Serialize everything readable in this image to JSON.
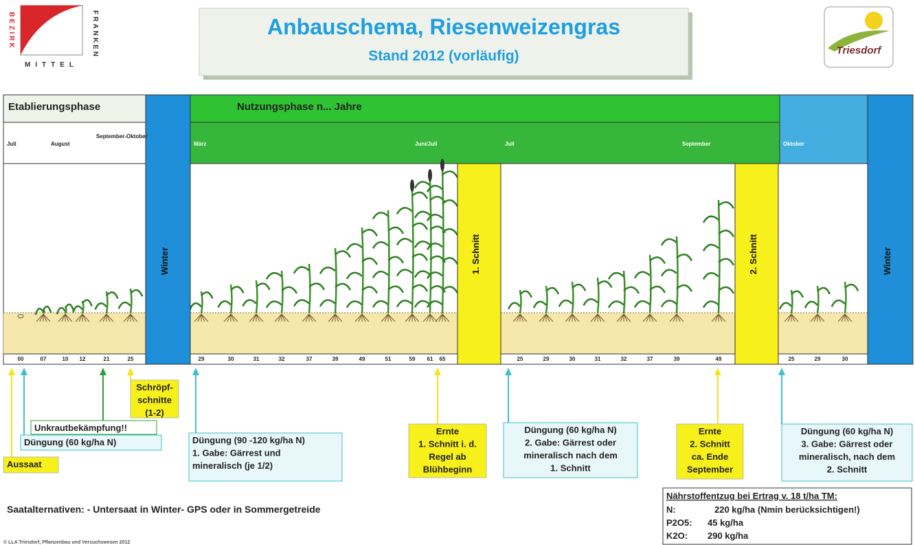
{
  "logo_left": {
    "vertical_left": "BEZIRK",
    "bottom": "MITTEL",
    "vertical_right": "FRANKEN"
  },
  "header": {
    "title": "Anbauschema, Riesenweizengras",
    "subtitle": "Stand 2012 (vorläufig)"
  },
  "logo_right": "Triesdorf",
  "phases": {
    "establishment": "Etablierungsphase",
    "usage": "Nutzungsphase n... Jahre",
    "winter": [
      "Winter",
      "Winter"
    ]
  },
  "months": [
    "Juli",
    "August",
    "September-Oktober",
    "März",
    "Juni/Juli",
    "Juli",
    "September",
    "Oktober"
  ],
  "cuts": [
    "1. Schnitt",
    "2. Schnitt"
  ],
  "stages": [
    [
      "00",
      "07",
      "10",
      "12",
      "21",
      "25"
    ],
    [
      "29",
      "30",
      "31",
      "32",
      "37",
      "39",
      "49",
      "51",
      "59",
      "61",
      "65"
    ],
    [
      "25",
      "29",
      "30",
      "31",
      "32",
      "37",
      "39",
      "49"
    ],
    [
      "25",
      "29",
      "30"
    ]
  ],
  "notes": [
    {
      "lines": [
        "Schröpf-",
        "schnitte",
        "(1-2)"
      ]
    },
    {
      "lines": [
        "Unkrautbekämpfung!!"
      ]
    },
    {
      "lines": [
        "Düngung (60 kg/ha N)"
      ]
    },
    {
      "lines": [
        "Aussaat"
      ]
    },
    {
      "lines": [
        "Düngung (90 -120 kg/ha N)",
        "1. Gabe: Gärrest und",
        "mineralisch (je 1/2)"
      ]
    },
    {
      "lines": [
        "Ernte",
        "1. Schnitt i. d.",
        "Regel ab",
        "Blühbeginn"
      ]
    },
    {
      "lines": [
        "Düngung (60 kg/ha N)",
        "2. Gabe: Gärrest oder",
        "mineralisch nach dem",
        "1. Schnitt"
      ]
    },
    {
      "lines": [
        "Ernte",
        "2. Schnitt",
        "ca. Ende",
        "September"
      ]
    },
    {
      "lines": [
        "Düngung (60 kg/ha N)",
        "3. Gabe: Gärrest oder",
        "mineralisch, nach dem",
        "2. Schnitt"
      ]
    }
  ],
  "seed_alternatives": "Saatalternativen: - Untersaat in Winter- GPS oder in Sommergetreide",
  "nutrients": {
    "title": "Nährstoffentzug bei Ertrag v. 18 t/ha TM:",
    "rows": [
      [
        "N:",
        "220 kg/ha (Nmin berücksichtigen!)"
      ],
      [
        "P2O5:",
        "45 kg/ha"
      ],
      [
        "K2O:",
        "290 kg/ha"
      ]
    ]
  },
  "footer": "© LLA Triesdorf, Pflanzenbau und Versuchswesen 2012"
}
